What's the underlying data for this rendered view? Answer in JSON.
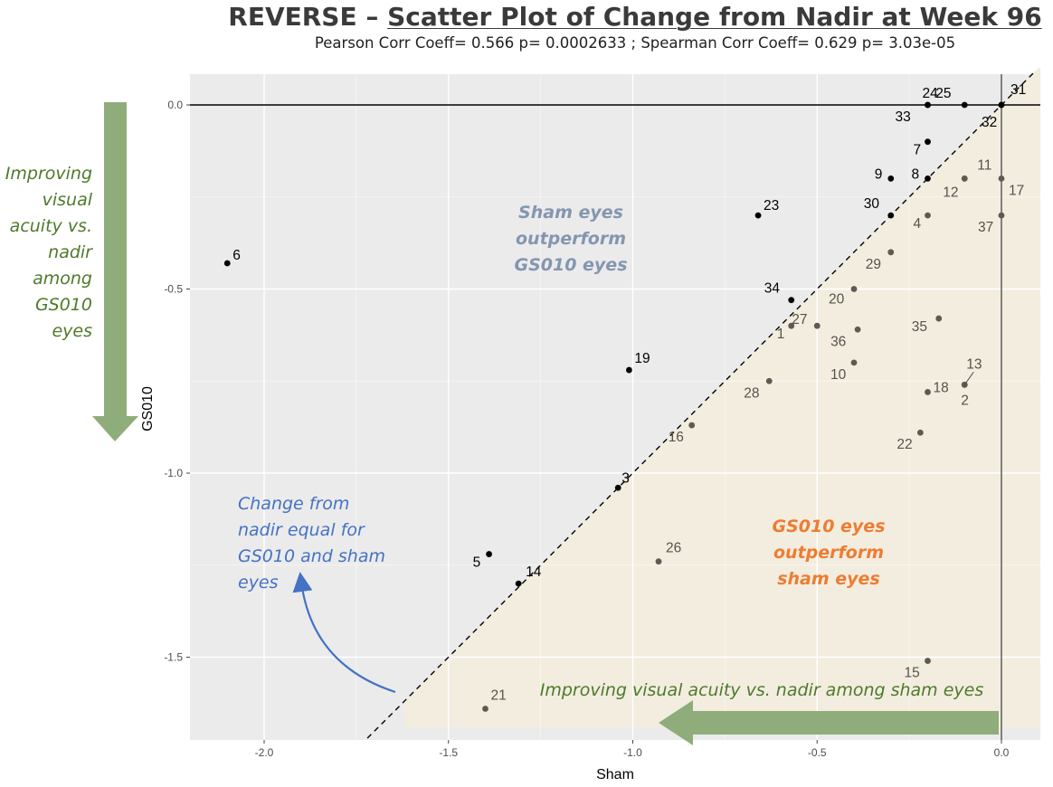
{
  "title_prefix": "REVERSE – ",
  "title_main": "Scatter Plot of Change from Nadir at Week 96",
  "subtitle": "Pearson Corr Coeff= 0.566 p= 0.0002633 ; Spearman Corr Coeff= 0.629 p= 3.03e-05",
  "colors": {
    "panel_bg": "#ebebeb",
    "gs_region": "#f3ede0",
    "point_dark": "#000000",
    "point_grey": "#5e5a52",
    "green_arrow": "#8fad7a",
    "green_text": "#4e7a2a",
    "blue_text": "#4472c4",
    "grey_blue_text": "#8496b0",
    "orange_text": "#ed7d31"
  },
  "annotations": {
    "left_arrow_text": [
      "Improving",
      "visual",
      "acuity vs.",
      "nadir",
      "among",
      "GS010",
      "eyes"
    ],
    "bottom_arrow_text": "Improving visual acuity vs. nadir among sham eyes",
    "sham_outperform": [
      "Sham eyes",
      "outperform",
      "GS010 eyes"
    ],
    "gs_outperform": [
      "GS010 eyes",
      "outperform",
      "sham eyes"
    ],
    "equal_change": [
      "Change from",
      "nadir equal  for",
      "GS010 and sham",
      "eyes"
    ]
  },
  "chart_data": {
    "type": "scatter",
    "xlabel": "Sham",
    "ylabel": "GS010",
    "xlim": [
      -2.2,
      0.1
    ],
    "ylim": [
      -1.72,
      0.08
    ],
    "xticks": [
      -2.0,
      -1.5,
      -1.0,
      -0.5,
      0.0
    ],
    "xtick_labels": [
      "-2.0",
      "-1.5",
      "-1.0",
      "-0.5",
      "0.0"
    ],
    "yticks": [
      0.0,
      -0.5,
      -1.0,
      -1.5
    ],
    "ytick_labels": [
      "0.0",
      "-0.5",
      "-1.0",
      "-1.5"
    ],
    "reference_lines": {
      "horizontal_y": 0.0,
      "vertical_x": 0.0,
      "diagonal": "y = x (dashed)"
    },
    "grid": true,
    "points": [
      {
        "label": "1",
        "x": -0.57,
        "y": -0.6,
        "group": "grey"
      },
      {
        "label": "2",
        "x": -0.1,
        "y": -0.76,
        "group": "grey"
      },
      {
        "label": "3",
        "x": -1.04,
        "y": -1.04,
        "group": "dark"
      },
      {
        "label": "4",
        "x": -0.2,
        "y": -0.3,
        "group": "grey"
      },
      {
        "label": "5",
        "x": -1.39,
        "y": -1.22,
        "group": "dark"
      },
      {
        "label": "6",
        "x": -2.1,
        "y": -0.43,
        "group": "dark"
      },
      {
        "label": "7",
        "x": -0.2,
        "y": -0.1,
        "group": "dark"
      },
      {
        "label": "8",
        "x": -0.2,
        "y": -0.2,
        "group": "dark"
      },
      {
        "label": "9",
        "x": -0.3,
        "y": -0.2,
        "group": "dark"
      },
      {
        "label": "10",
        "x": -0.4,
        "y": -0.7,
        "group": "grey"
      },
      {
        "label": "11",
        "x": -0.1,
        "y": -0.2,
        "group": "grey"
      },
      {
        "label": "12",
        "x": -0.1,
        "y": -0.2,
        "group": "grey"
      },
      {
        "label": "13",
        "x": -0.1,
        "y": -0.76,
        "group": "grey"
      },
      {
        "label": "14",
        "x": -1.31,
        "y": -1.3,
        "group": "dark"
      },
      {
        "label": "15",
        "x": -0.2,
        "y": -1.51,
        "group": "grey"
      },
      {
        "label": "16",
        "x": -0.84,
        "y": -0.87,
        "group": "grey"
      },
      {
        "label": "17",
        "x": 0.0,
        "y": -0.2,
        "group": "grey"
      },
      {
        "label": "18",
        "x": -0.2,
        "y": -0.78,
        "group": "grey"
      },
      {
        "label": "19",
        "x": -1.01,
        "y": -0.72,
        "group": "dark"
      },
      {
        "label": "20",
        "x": -0.4,
        "y": -0.5,
        "group": "grey"
      },
      {
        "label": "21",
        "x": -1.4,
        "y": -1.64,
        "group": "grey"
      },
      {
        "label": "22",
        "x": -0.22,
        "y": -0.89,
        "group": "grey"
      },
      {
        "label": "23",
        "x": -0.66,
        "y": -0.3,
        "group": "dark"
      },
      {
        "label": "24",
        "x": -0.2,
        "y": 0.0,
        "group": "dark"
      },
      {
        "label": "25",
        "x": -0.1,
        "y": 0.0,
        "group": "dark"
      },
      {
        "label": "26",
        "x": -0.93,
        "y": -1.24,
        "group": "grey"
      },
      {
        "label": "27",
        "x": -0.5,
        "y": -0.6,
        "group": "grey"
      },
      {
        "label": "28",
        "x": -0.63,
        "y": -0.75,
        "group": "grey"
      },
      {
        "label": "29",
        "x": -0.3,
        "y": -0.4,
        "group": "grey"
      },
      {
        "label": "30",
        "x": -0.3,
        "y": -0.3,
        "group": "dark"
      },
      {
        "label": "31",
        "x": 0.0,
        "y": 0.0,
        "group": "dark"
      },
      {
        "label": "32",
        "x": 0.0,
        "y": 0.0,
        "group": "dark"
      },
      {
        "label": "33",
        "x": -0.2,
        "y": 0.0,
        "group": "dark"
      },
      {
        "label": "34",
        "x": -0.57,
        "y": -0.53,
        "group": "dark"
      },
      {
        "label": "35",
        "x": -0.17,
        "y": -0.58,
        "group": "grey"
      },
      {
        "label": "36",
        "x": -0.39,
        "y": -0.61,
        "group": "grey"
      },
      {
        "label": "37",
        "x": 0.0,
        "y": -0.3,
        "group": "grey"
      }
    ]
  }
}
